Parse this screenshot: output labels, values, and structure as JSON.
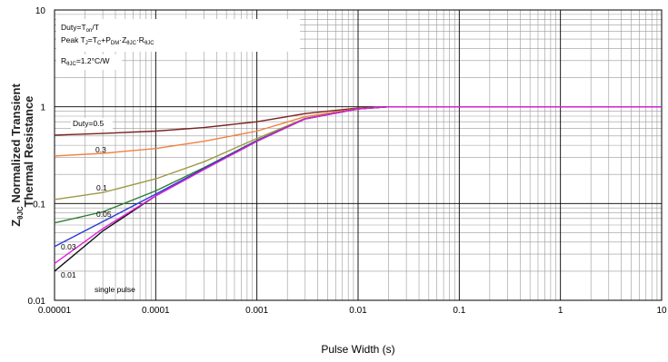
{
  "chart_data": {
    "type": "line",
    "x_scale": "log",
    "y_scale": "log",
    "xlim": [
      1e-05,
      10
    ],
    "ylim": [
      0.01,
      10
    ],
    "grid": true,
    "xlabel": "Pulse Width (s)",
    "ylabel_line1": "Normalized Transient",
    "ylabel_line2": "Thermal Resistance",
    "ylabel_symbol": "Z",
    "ylabel_symbol_sub": "θJC",
    "x_ticks": [
      {
        "value": 1e-05,
        "label": "0.00001"
      },
      {
        "value": 0.0001,
        "label": "0.0001"
      },
      {
        "value": 0.001,
        "label": "0.001"
      },
      {
        "value": 0.01,
        "label": "0.01"
      },
      {
        "value": 0.1,
        "label": "0.1"
      },
      {
        "value": 1,
        "label": "1"
      },
      {
        "value": 10,
        "label": "10"
      }
    ],
    "y_ticks": [
      {
        "value": 0.01,
        "label": "0.01"
      },
      {
        "value": 0.1,
        "label": "0.1"
      },
      {
        "value": 1,
        "label": "1"
      },
      {
        "value": 10,
        "label": "10"
      }
    ],
    "notes": {
      "line1": "Duty=T",
      "line1_sub": "on",
      "line1_tail": "/T",
      "line2_a": "Peak T",
      "line2_a_sub": "J",
      "line2_b": "=T",
      "line2_b_sub": "C",
      "line2_c": "+P",
      "line2_c_sub": "DM",
      "line2_d": "·Z",
      "line2_d_sub": "θJC",
      "line2_e": "·R",
      "line2_e_sub": "θJC",
      "line3_a": "R",
      "line3_a_sub": "θJC",
      "line3_b": "=1.2°C/W"
    },
    "series": [
      {
        "name": "Duty=0.5",
        "color": "#7a2020",
        "x": [
          1e-05,
          3e-05,
          0.0001,
          0.0003,
          0.001,
          0.003,
          0.01,
          0.02,
          10
        ],
        "y": [
          0.51,
          0.53,
          0.56,
          0.61,
          0.7,
          0.85,
          0.97,
          1.0,
          1.0
        ]
      },
      {
        "name": "0.3",
        "color": "#f08040",
        "x": [
          1e-05,
          3e-05,
          0.0001,
          0.0003,
          0.001,
          0.003,
          0.01,
          0.02,
          10
        ],
        "y": [
          0.31,
          0.33,
          0.37,
          0.44,
          0.56,
          0.79,
          0.96,
          1.0,
          1.0
        ]
      },
      {
        "name": "0.1",
        "color": "#a09848",
        "x": [
          1e-05,
          3e-05,
          0.0001,
          0.0003,
          0.001,
          0.003,
          0.01,
          0.02,
          10
        ],
        "y": [
          0.11,
          0.13,
          0.18,
          0.27,
          0.47,
          0.76,
          0.95,
          1.0,
          1.0
        ]
      },
      {
        "name": "0.05",
        "color": "#2e7d32",
        "x": [
          1e-05,
          3e-05,
          0.0001,
          0.0003,
          0.001,
          0.003,
          0.01,
          0.02,
          10
        ],
        "y": [
          0.063,
          0.082,
          0.135,
          0.235,
          0.45,
          0.75,
          0.95,
          1.0,
          1.0
        ]
      },
      {
        "name": "0.03",
        "color": "#2a3ad8",
        "x": [
          1e-05,
          3e-05,
          0.0001,
          0.0003,
          0.001,
          0.003,
          0.01,
          0.02,
          10
        ],
        "y": [
          0.036,
          0.065,
          0.125,
          0.23,
          0.445,
          0.75,
          0.95,
          1.0,
          1.0
        ]
      },
      {
        "name": "0.01",
        "color": "#111111",
        "x": [
          1e-05,
          3e-05,
          0.0001,
          0.0003,
          0.001,
          0.003,
          0.01,
          0.02,
          10
        ],
        "y": [
          0.02,
          0.052,
          0.12,
          0.225,
          0.44,
          0.75,
          0.95,
          1.0,
          1.0
        ]
      },
      {
        "name": "single pulse",
        "color": "#e020e0",
        "x": [
          1e-05,
          3e-05,
          0.0001,
          0.0003,
          0.001,
          0.003,
          0.01,
          0.02,
          10
        ],
        "y": [
          0.024,
          0.055,
          0.12,
          0.225,
          0.44,
          0.75,
          0.95,
          1.0,
          1.0
        ]
      }
    ],
    "duty_labels": [
      {
        "text": "Duty=0.5",
        "series": 0
      },
      {
        "text": "0.3",
        "series": 1
      },
      {
        "text": "0.1",
        "series": 2
      },
      {
        "text": "0.05",
        "series": 3
      },
      {
        "text": "0.03",
        "series": 4
      },
      {
        "text": "0.01",
        "series": 5
      },
      {
        "text": "single pulse",
        "series": 6
      }
    ]
  }
}
